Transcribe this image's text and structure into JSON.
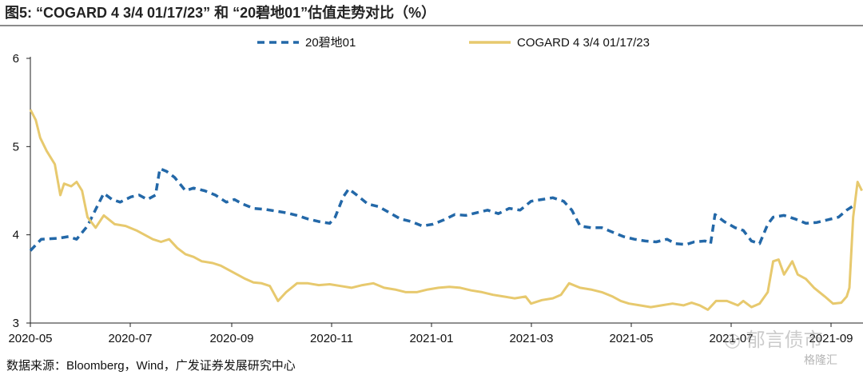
{
  "title": "图5:   “COGARD 4 3/4 01/17/23” 和 “20碧地01”估值走势对比（%）",
  "source": "数据来源：Bloomberg，Wind，广发证券发展研究中心",
  "watermark": "◎ 郁言债市",
  "watermark2": "格隆汇",
  "chart_data": {
    "type": "line",
    "ylim": [
      3,
      6
    ],
    "yticks": [
      "3",
      "4",
      "5",
      "6"
    ],
    "xticks": [
      "2020-05",
      "2020-07",
      "2020-09",
      "2020-11",
      "2021-01",
      "2021-03",
      "2021-05",
      "2021-07",
      "2021-09"
    ],
    "legend_position": "top-center",
    "series": [
      {
        "name": "20碧地01",
        "color": "#2368a8",
        "style": "dashed",
        "points": [
          [
            0.0,
            3.82
          ],
          [
            0.2,
            3.95
          ],
          [
            0.5,
            3.96
          ],
          [
            0.7,
            3.98
          ],
          [
            0.85,
            3.95
          ],
          [
            1.05,
            4.1
          ],
          [
            1.25,
            4.35
          ],
          [
            1.35,
            4.47
          ],
          [
            1.5,
            4.4
          ],
          [
            1.65,
            4.37
          ],
          [
            1.85,
            4.43
          ],
          [
            2.0,
            4.45
          ],
          [
            2.15,
            4.4
          ],
          [
            2.3,
            4.45
          ],
          [
            2.38,
            4.75
          ],
          [
            2.5,
            4.72
          ],
          [
            2.65,
            4.65
          ],
          [
            2.85,
            4.5
          ],
          [
            3.0,
            4.53
          ],
          [
            3.2,
            4.5
          ],
          [
            3.4,
            4.45
          ],
          [
            3.6,
            4.37
          ],
          [
            3.75,
            4.4
          ],
          [
            3.9,
            4.35
          ],
          [
            4.1,
            4.3
          ],
          [
            4.3,
            4.29
          ],
          [
            4.5,
            4.27
          ],
          [
            4.7,
            4.25
          ],
          [
            4.9,
            4.22
          ],
          [
            5.1,
            4.18
          ],
          [
            5.3,
            4.15
          ],
          [
            5.5,
            4.13
          ],
          [
            5.6,
            4.2
          ],
          [
            5.75,
            4.43
          ],
          [
            5.85,
            4.52
          ],
          [
            6.0,
            4.45
          ],
          [
            6.2,
            4.35
          ],
          [
            6.4,
            4.32
          ],
          [
            6.6,
            4.25
          ],
          [
            6.8,
            4.18
          ],
          [
            7.0,
            4.15
          ],
          [
            7.2,
            4.1
          ],
          [
            7.4,
            4.12
          ],
          [
            7.6,
            4.17
          ],
          [
            7.8,
            4.23
          ],
          [
            8.0,
            4.22
          ],
          [
            8.2,
            4.25
          ],
          [
            8.4,
            4.28
          ],
          [
            8.6,
            4.24
          ],
          [
            8.8,
            4.3
          ],
          [
            9.0,
            4.28
          ],
          [
            9.2,
            4.38
          ],
          [
            9.4,
            4.4
          ],
          [
            9.6,
            4.42
          ],
          [
            9.8,
            4.38
          ],
          [
            9.95,
            4.28
          ],
          [
            10.1,
            4.1
          ],
          [
            10.3,
            4.08
          ],
          [
            10.5,
            4.08
          ],
          [
            10.7,
            4.03
          ],
          [
            10.9,
            3.98
          ],
          [
            11.1,
            3.95
          ],
          [
            11.3,
            3.93
          ],
          [
            11.5,
            3.92
          ],
          [
            11.7,
            3.95
          ],
          [
            11.85,
            3.9
          ],
          [
            12.05,
            3.89
          ],
          [
            12.2,
            3.92
          ],
          [
            12.4,
            3.93
          ],
          [
            12.5,
            3.9
          ],
          [
            12.58,
            4.23
          ],
          [
            12.75,
            4.15
          ],
          [
            12.95,
            4.08
          ],
          [
            13.1,
            4.05
          ],
          [
            13.25,
            3.93
          ],
          [
            13.4,
            3.9
          ],
          [
            13.55,
            4.12
          ],
          [
            13.65,
            4.2
          ],
          [
            13.85,
            4.22
          ],
          [
            14.05,
            4.18
          ],
          [
            14.25,
            4.13
          ],
          [
            14.45,
            4.14
          ],
          [
            14.65,
            4.17
          ],
          [
            14.85,
            4.2
          ],
          [
            15.0,
            4.28
          ],
          [
            15.1,
            4.32
          ]
        ]
      },
      {
        "name": "COGARD 4 3/4 01/17/23",
        "color": "#e7c96e",
        "style": "solid",
        "points": [
          [
            0.0,
            5.42
          ],
          [
            0.1,
            5.3
          ],
          [
            0.18,
            5.1
          ],
          [
            0.3,
            4.95
          ],
          [
            0.45,
            4.8
          ],
          [
            0.55,
            4.45
          ],
          [
            0.62,
            4.58
          ],
          [
            0.75,
            4.55
          ],
          [
            0.85,
            4.6
          ],
          [
            0.95,
            4.5
          ],
          [
            1.05,
            4.2
          ],
          [
            1.2,
            4.08
          ],
          [
            1.35,
            4.22
          ],
          [
            1.55,
            4.12
          ],
          [
            1.75,
            4.1
          ],
          [
            1.95,
            4.05
          ],
          [
            2.1,
            4.0
          ],
          [
            2.25,
            3.95
          ],
          [
            2.4,
            3.92
          ],
          [
            2.55,
            3.95
          ],
          [
            2.7,
            3.85
          ],
          [
            2.85,
            3.78
          ],
          [
            3.0,
            3.75
          ],
          [
            3.15,
            3.7
          ],
          [
            3.35,
            3.68
          ],
          [
            3.5,
            3.65
          ],
          [
            3.65,
            3.6
          ],
          [
            3.8,
            3.55
          ],
          [
            3.95,
            3.5
          ],
          [
            4.1,
            3.46
          ],
          [
            4.25,
            3.45
          ],
          [
            4.4,
            3.42
          ],
          [
            4.55,
            3.25
          ],
          [
            4.7,
            3.35
          ],
          [
            4.9,
            3.45
          ],
          [
            5.1,
            3.45
          ],
          [
            5.3,
            3.43
          ],
          [
            5.5,
            3.44
          ],
          [
            5.7,
            3.42
          ],
          [
            5.9,
            3.4
          ],
          [
            6.1,
            3.43
          ],
          [
            6.3,
            3.45
          ],
          [
            6.5,
            3.4
          ],
          [
            6.7,
            3.38
          ],
          [
            6.9,
            3.35
          ],
          [
            7.1,
            3.35
          ],
          [
            7.3,
            3.38
          ],
          [
            7.5,
            3.4
          ],
          [
            7.7,
            3.41
          ],
          [
            7.9,
            3.4
          ],
          [
            8.1,
            3.37
          ],
          [
            8.3,
            3.35
          ],
          [
            8.5,
            3.32
          ],
          [
            8.7,
            3.3
          ],
          [
            8.9,
            3.28
          ],
          [
            9.1,
            3.3
          ],
          [
            9.2,
            3.22
          ],
          [
            9.4,
            3.26
          ],
          [
            9.6,
            3.28
          ],
          [
            9.75,
            3.32
          ],
          [
            9.9,
            3.45
          ],
          [
            10.1,
            3.4
          ],
          [
            10.3,
            3.38
          ],
          [
            10.5,
            3.35
          ],
          [
            10.7,
            3.3
          ],
          [
            10.85,
            3.25
          ],
          [
            11.0,
            3.22
          ],
          [
            11.2,
            3.2
          ],
          [
            11.4,
            3.18
          ],
          [
            11.6,
            3.2
          ],
          [
            11.8,
            3.22
          ],
          [
            12.0,
            3.2
          ],
          [
            12.15,
            3.23
          ],
          [
            12.3,
            3.2
          ],
          [
            12.45,
            3.15
          ],
          [
            12.6,
            3.25
          ],
          [
            12.8,
            3.25
          ],
          [
            13.0,
            3.2
          ],
          [
            13.1,
            3.25
          ],
          [
            13.25,
            3.18
          ],
          [
            13.4,
            3.22
          ],
          [
            13.55,
            3.35
          ],
          [
            13.65,
            3.7
          ],
          [
            13.75,
            3.72
          ],
          [
            13.85,
            3.55
          ],
          [
            14.0,
            3.7
          ],
          [
            14.1,
            3.55
          ],
          [
            14.25,
            3.5
          ],
          [
            14.4,
            3.4
          ],
          [
            14.6,
            3.3
          ],
          [
            14.75,
            3.22
          ],
          [
            14.9,
            3.23
          ],
          [
            15.0,
            3.3
          ],
          [
            15.05,
            3.4
          ],
          [
            15.12,
            4.2
          ],
          [
            15.2,
            4.6
          ],
          [
            15.28,
            4.5
          ]
        ]
      }
    ]
  }
}
